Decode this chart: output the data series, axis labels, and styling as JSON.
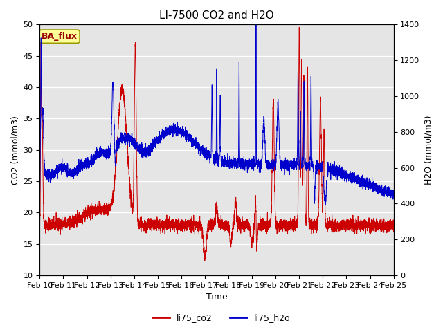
{
  "title": "LI-7500 CO2 and H2O",
  "xlabel": "Time",
  "ylabel_left": "CO2 (mmol/m3)",
  "ylabel_right": "H2O (mmol/m3)",
  "ylim_left": [
    10,
    50
  ],
  "ylim_right": [
    0,
    1400
  ],
  "x_tick_labels": [
    "Feb 10",
    "Feb 11",
    "Feb 12",
    "Feb 13",
    "Feb 14",
    "Feb 15",
    "Feb 16",
    "Feb 17",
    "Feb 18",
    "Feb 19",
    "Feb 20",
    "Feb 21",
    "Feb 22",
    "Feb 23",
    "Feb 24",
    "Feb 25"
  ],
  "legend_label_co2": "li75_co2",
  "legend_label_h2o": "li75_h2o",
  "color_co2": "#cc0000",
  "color_h2o": "#0000cc",
  "annotation_text": "BA_flux",
  "annotation_bg": "#ffff99",
  "annotation_border": "#999900",
  "bg_color": "#e5e5e5",
  "title_fontsize": 11,
  "axis_fontsize": 9,
  "tick_fontsize": 8
}
